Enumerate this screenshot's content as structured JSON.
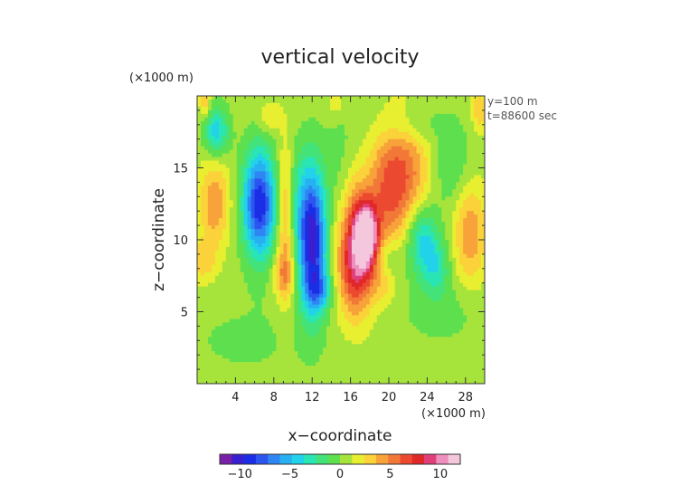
{
  "chart_data": {
    "type": "heatmap",
    "title": "vertical velocity",
    "xlabel": "x−coordinate",
    "ylabel": "z−coordinate",
    "x_unit": "(×1000 m)",
    "y_unit": "(×1000 m)",
    "xlim": [
      0,
      30
    ],
    "ylim": [
      0,
      20
    ],
    "xticks": [
      4,
      8,
      12,
      16,
      20,
      24,
      28
    ],
    "yticks": [
      5,
      10,
      15
    ],
    "annotations": [
      "y=100 m",
      "t=88600 sec"
    ],
    "colorbar": {
      "range": [
        -12,
        12
      ],
      "ticks": [
        -10,
        -5,
        0,
        5,
        10
      ],
      "tick_labels": [
        "−10",
        "−5",
        "0",
        "5",
        "10"
      ],
      "colors": [
        "#7a1fa8",
        "#3a1fd0",
        "#1a2ee6",
        "#2c55f0",
        "#2f86f2",
        "#27b0f2",
        "#22d2ea",
        "#2ae5b4",
        "#44e37a",
        "#5ee04e",
        "#a6e43c",
        "#e8ef30",
        "#fbd23a",
        "#f7a33a",
        "#f27838",
        "#ec4a30",
        "#e02828",
        "#e0407a",
        "#ef8fbd",
        "#f5c7dd"
      ]
    },
    "background_value": 0.6,
    "features": [
      {
        "x": 2.0,
        "z": 17.5,
        "value": -5,
        "sx": 0.9,
        "sz": 1.2
      },
      {
        "x": 6.5,
        "z": 12.5,
        "value": -10,
        "sx": 1.2,
        "sz": 2.6
      },
      {
        "x": 12.0,
        "z": 10.0,
        "value": -11,
        "sx": 1.0,
        "sz": 3.4
      },
      {
        "x": 12.8,
        "z": 6.5,
        "value": -4,
        "sx": 1.0,
        "sz": 1.0
      },
      {
        "x": 10.5,
        "z": 13.0,
        "value": -2,
        "sx": 0.9,
        "sz": 2.5
      },
      {
        "x": 9.2,
        "z": 11.5,
        "value": 4,
        "sx": 0.6,
        "sz": 3.5
      },
      {
        "x": 9.0,
        "z": 7.5,
        "value": 3,
        "sx": 0.8,
        "sz": 1.2
      },
      {
        "x": 1.8,
        "z": 12.5,
        "value": 4,
        "sx": 1.1,
        "sz": 2.2
      },
      {
        "x": 17.7,
        "z": 10.3,
        "value": 10,
        "sx": 0.8,
        "sz": 1.5
      },
      {
        "x": 16.5,
        "z": 8.0,
        "value": 6,
        "sx": 1.4,
        "sz": 2.4
      },
      {
        "x": 16.5,
        "z": 11.0,
        "value": 4,
        "sx": 1.0,
        "sz": 3.0
      },
      {
        "x": 21.5,
        "z": 14.5,
        "value": 5,
        "sx": 2.0,
        "sz": 2.8
      },
      {
        "x": 19.5,
        "z": 12.5,
        "value": 3,
        "sx": 1.5,
        "sz": 3.0
      },
      {
        "x": 19.5,
        "z": 7.0,
        "value": 2,
        "sx": 1.0,
        "sz": 1.0
      },
      {
        "x": 23.5,
        "z": 10.0,
        "value": -5,
        "sx": 1.2,
        "sz": 1.8
      },
      {
        "x": 25.0,
        "z": 8.0,
        "value": -3,
        "sx": 1.0,
        "sz": 1.3
      },
      {
        "x": 28.5,
        "z": 10.5,
        "value": 4,
        "sx": 1.2,
        "sz": 2.5
      },
      {
        "x": 20.0,
        "z": 8.5,
        "value": -2,
        "sx": 1.0,
        "sz": 1.2
      },
      {
        "x": 26.5,
        "z": 15.0,
        "value": -2,
        "sx": 1.5,
        "sz": 2.0
      },
      {
        "x": 22.5,
        "z": 18.0,
        "value": -1.5,
        "sx": 2.5,
        "sz": 1.0
      },
      {
        "x": 15.5,
        "z": 15.5,
        "value": -1.2,
        "sx": 1.5,
        "sz": 2.5
      },
      {
        "x": 7.5,
        "z": 18.5,
        "value": 2,
        "sx": 0.8,
        "sz": 0.8
      },
      {
        "x": 14.5,
        "z": 19.5,
        "value": 2,
        "sx": 0.5,
        "sz": 0.5
      },
      {
        "x": 0.8,
        "z": 19.5,
        "value": 3,
        "sx": 0.4,
        "sz": 0.7
      },
      {
        "x": 0.5,
        "z": 8.5,
        "value": 2.5,
        "sx": 1.0,
        "sz": 1.0
      },
      {
        "x": 29.5,
        "z": 19.0,
        "value": 3,
        "sx": 0.6,
        "sz": 1.0
      },
      {
        "x": 25.5,
        "z": 5.0,
        "value": -1.2,
        "sx": 3.0,
        "sz": 1.5
      },
      {
        "x": 5.0,
        "z": 3.0,
        "value": -0.8,
        "sx": 5.0,
        "sz": 2.0
      }
    ]
  }
}
